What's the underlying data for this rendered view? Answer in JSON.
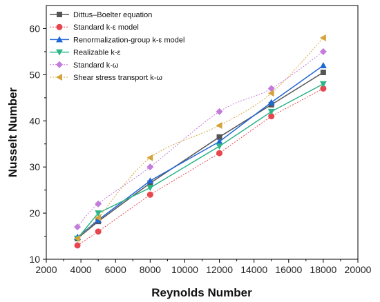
{
  "chart_data": {
    "type": "line",
    "xlabel": "Reynolds Number",
    "ylabel": "Nusselt Number",
    "xlim": [
      2000,
      20000
    ],
    "ylim": [
      10,
      65
    ],
    "xticks": [
      2000,
      4000,
      6000,
      8000,
      10000,
      12000,
      14000,
      16000,
      18000,
      20000
    ],
    "yticks": [
      10,
      20,
      30,
      40,
      50,
      60
    ],
    "grid": false,
    "legend_position": "top-left",
    "x": [
      3800,
      5000,
      8000,
      12000,
      15000,
      18000
    ],
    "series": [
      {
        "name": "Dittus–Boelter equation",
        "values": [
          14.5,
          18.2,
          26.5,
          36.5,
          43.5,
          50.5
        ],
        "color": "#555555",
        "marker": "square",
        "line": "solid",
        "smooth": false
      },
      {
        "name": "Standard k-ε model",
        "values": [
          13,
          16,
          24,
          33,
          41,
          47
        ],
        "color": "#e8464f",
        "marker": "circle",
        "line": "dotted",
        "smooth": false
      },
      {
        "name": "Renormalization-group k-ε model",
        "values": [
          14.8,
          18.5,
          27,
          35.5,
          44,
          52
        ],
        "color": "#1f66d6",
        "marker": "triangle-up",
        "line": "solid",
        "smooth": false
      },
      {
        "name": "Realizable k-ε",
        "values": [
          14.5,
          20,
          25.5,
          34.5,
          42,
          48
        ],
        "color": "#2db587",
        "marker": "triangle-down",
        "line": "solid",
        "smooth": false
      },
      {
        "name": "Standard k-ω",
        "values": [
          17,
          22,
          30,
          42,
          47,
          55
        ],
        "color": "#c47cdc",
        "marker": "diamond",
        "line": "dotted",
        "smooth": true
      },
      {
        "name": "Shear stress transport k-ω",
        "values": [
          14.5,
          19,
          32,
          39,
          46,
          58
        ],
        "color": "#d4a43a",
        "marker": "triangle-left",
        "line": "dotted",
        "smooth": true
      }
    ]
  }
}
